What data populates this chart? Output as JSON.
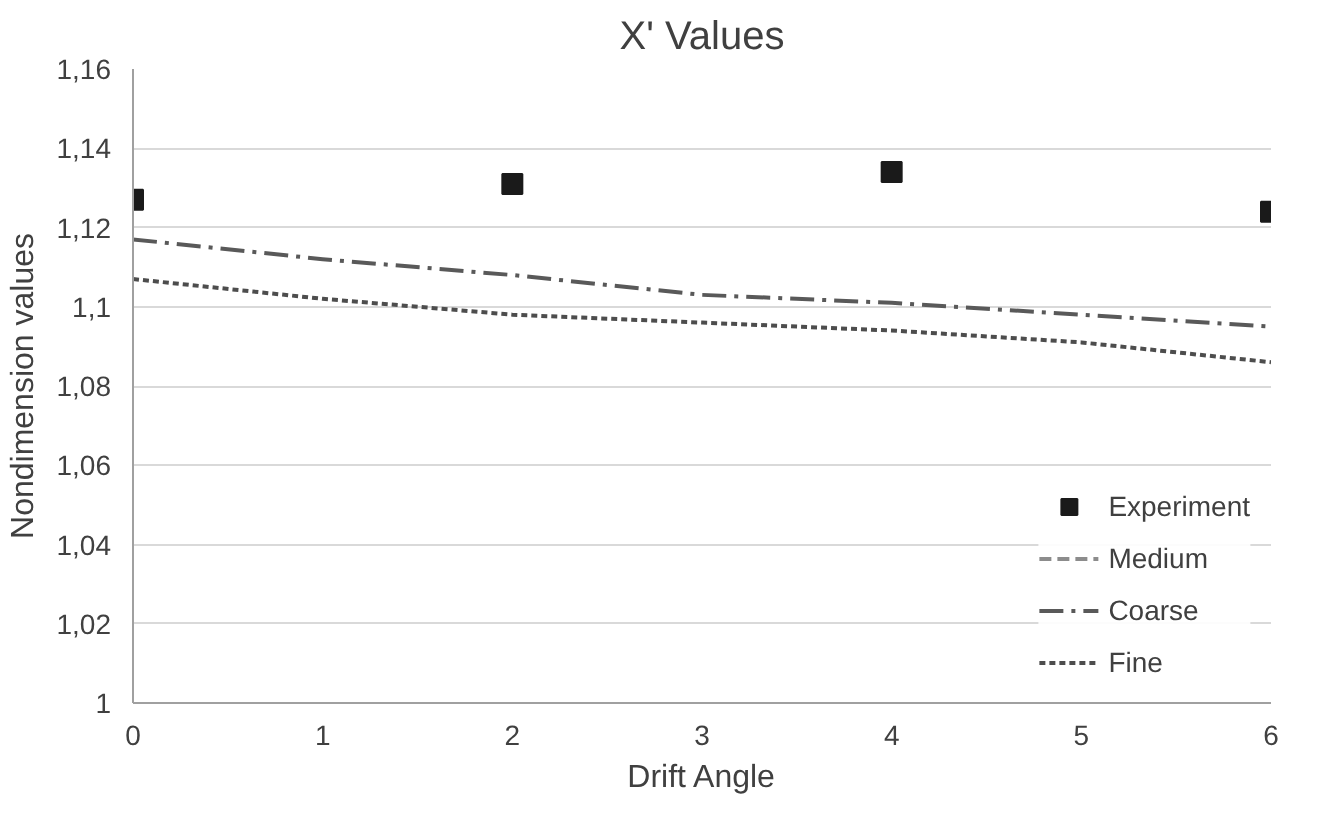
{
  "chart_data": {
    "type": "line",
    "title": "X' Values",
    "xlabel": "Drift Angle",
    "ylabel": "Nondimension values",
    "xlim": [
      0,
      6
    ],
    "xticks": [
      0,
      1,
      2,
      3,
      4,
      5,
      6
    ],
    "ylim": [
      1,
      1.16
    ],
    "yticks": [
      {
        "value": 1,
        "label": "1"
      },
      {
        "value": 1.02,
        "label": "1,02"
      },
      {
        "value": 1.04,
        "label": "1,04"
      },
      {
        "value": 1.06,
        "label": "1,06"
      },
      {
        "value": 1.08,
        "label": "1,08"
      },
      {
        "value": 1.1,
        "label": "1,1"
      },
      {
        "value": 1.12,
        "label": "1,12"
      },
      {
        "value": 1.14,
        "label": "1,14"
      },
      {
        "value": 1.16,
        "label": "1,16"
      }
    ],
    "grid": "y",
    "legend": "bottom right",
    "x": [
      0,
      1,
      2,
      3,
      4,
      5,
      6
    ],
    "series": [
      {
        "name": "Experiment",
        "type": "scatter",
        "marker": "square",
        "color": "#1a1a1a",
        "x": [
          0,
          2,
          4,
          6
        ],
        "values": [
          1.127,
          1.131,
          1.134,
          1.124
        ]
      },
      {
        "name": "Medium",
        "line_style": "dashed",
        "color": "#8c8c8c",
        "values": [
          null,
          null,
          null,
          null,
          null,
          null,
          null
        ]
      },
      {
        "name": "Coarse",
        "line_style": "dashdot",
        "color": "#595959",
        "values": [
          1.117,
          1.112,
          1.108,
          1.103,
          1.101,
          1.098,
          1.095
        ]
      },
      {
        "name": "Fine",
        "line_style": "dotted",
        "color": "#4d4d4d",
        "values": [
          1.107,
          1.102,
          1.098,
          1.096,
          1.094,
          1.091,
          1.086
        ]
      }
    ]
  }
}
